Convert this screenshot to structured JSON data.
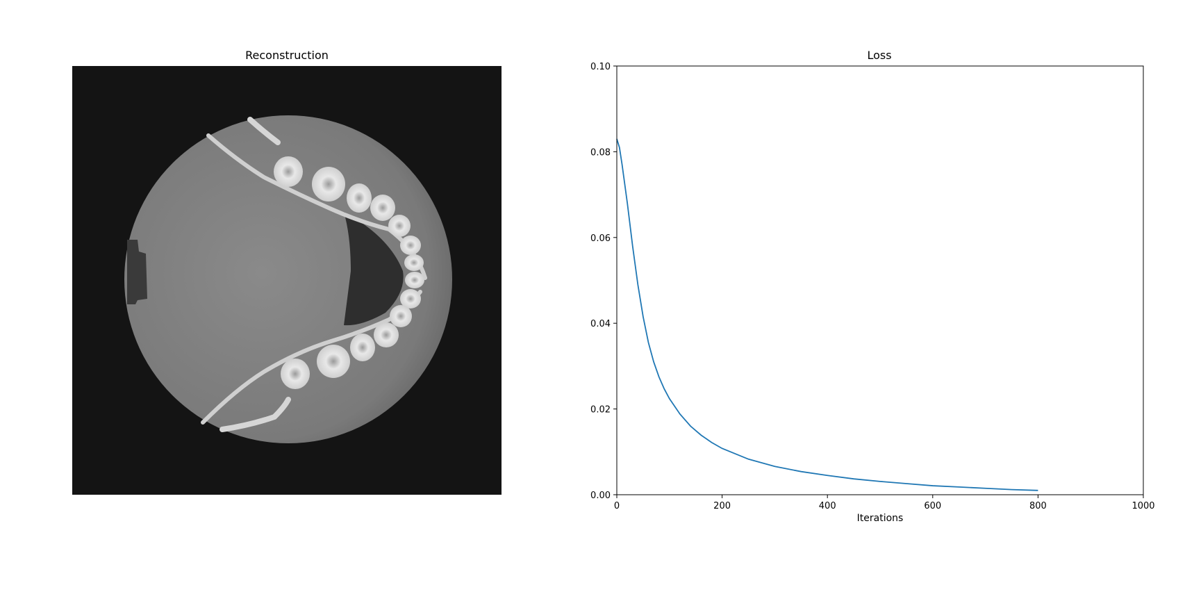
{
  "panels": {
    "left": {
      "title": "Reconstruction"
    },
    "right": {
      "title": "Loss"
    }
  },
  "colors": {
    "line": "#1f77b4",
    "image_background": "#141414",
    "axis": "#000000"
  },
  "chart_data": [
    {
      "type": "image",
      "title": "Reconstruction",
      "description_visible": "grayscale axial CT slice",
      "axes_visible": false
    },
    {
      "type": "line",
      "title": "Loss",
      "xlabel": "Iterations",
      "ylabel": "",
      "xlim": [
        0,
        1000
      ],
      "ylim": [
        0,
        0.1
      ],
      "xticks": [
        0,
        200,
        400,
        600,
        800,
        1000
      ],
      "xtick_labels": [
        "0",
        "200",
        "400",
        "600",
        "800",
        "1000"
      ],
      "yticks": [
        0,
        0.02,
        0.04,
        0.06,
        0.08,
        0.1
      ],
      "ytick_labels": [
        "0.00",
        "0.02",
        "0.04",
        "0.06",
        "0.08",
        "0.10"
      ],
      "grid": false,
      "series": [
        {
          "x": [
            0,
            5,
            10,
            20,
            30,
            40,
            50,
            60,
            70,
            80,
            90,
            100,
            120,
            140,
            160,
            180,
            200,
            250,
            300,
            350,
            400,
            450,
            500,
            550,
            600,
            650,
            700,
            750,
            800
          ],
          "y": [
            0.083,
            0.081,
            0.077,
            0.068,
            0.058,
            0.049,
            0.0415,
            0.0355,
            0.031,
            0.0275,
            0.0247,
            0.0224,
            0.0188,
            0.016,
            0.0139,
            0.0122,
            0.0108,
            0.0083,
            0.0066,
            0.0054,
            0.0045,
            0.0037,
            0.0031,
            0.0026,
            0.0021,
            0.0018,
            0.0015,
            0.0012,
            0.001
          ]
        }
      ]
    }
  ]
}
